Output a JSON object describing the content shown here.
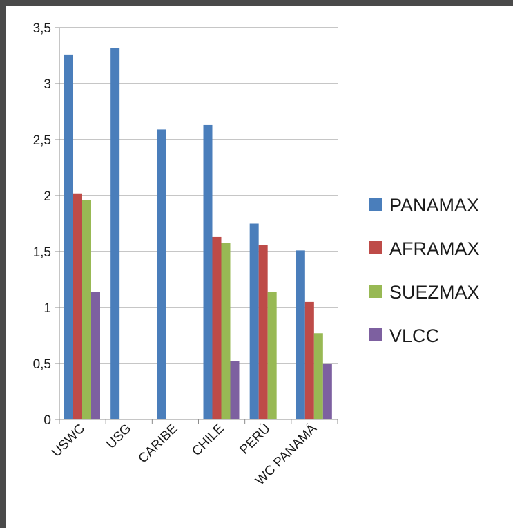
{
  "chart_data": {
    "type": "bar",
    "title": "",
    "xlabel": "",
    "ylabel": "",
    "categories": [
      "USWC",
      "USG",
      "CARIBE",
      "CHILE",
      "PERÚ",
      "WC PANAMÁ"
    ],
    "series": [
      {
        "name": "PANAMAX",
        "color": "#4a7ebb",
        "values": [
          3.26,
          3.32,
          2.59,
          2.63,
          1.75,
          1.51
        ]
      },
      {
        "name": "AFRAMAX",
        "color": "#be4b48",
        "values": [
          2.02,
          null,
          null,
          1.63,
          1.56,
          1.05
        ]
      },
      {
        "name": "SUEZMAX",
        "color": "#98b954",
        "values": [
          1.96,
          null,
          null,
          1.58,
          1.14,
          0.77
        ]
      },
      {
        "name": "VLCC",
        "color": "#7d60a0",
        "values": [
          1.14,
          null,
          null,
          0.52,
          null,
          0.5
        ]
      }
    ],
    "y_ticks": [
      "0",
      "0,5",
      "1",
      "1,5",
      "2",
      "2,5",
      "3",
      "3,5"
    ],
    "ylim": [
      0,
      3.5
    ],
    "y_step": 0.5,
    "grid": true,
    "legend_position": "right"
  }
}
